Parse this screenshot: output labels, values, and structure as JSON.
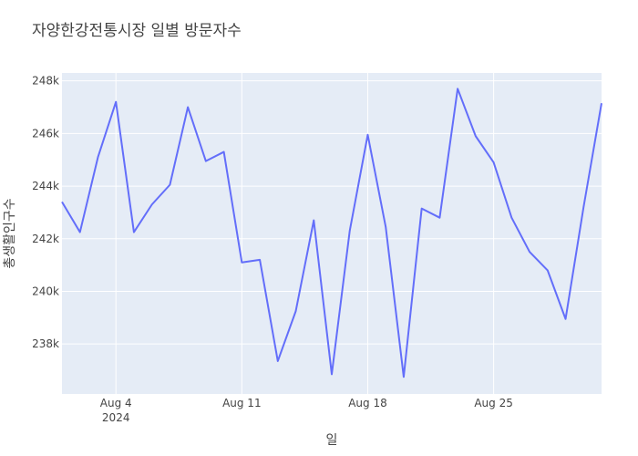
{
  "chart_data": {
    "type": "line",
    "title": "자양한강전통시장 일별 방문자수",
    "xlabel": "일",
    "ylabel": "총생활인구수",
    "x": [
      "2024-08-01",
      "2024-08-02",
      "2024-08-03",
      "2024-08-04",
      "2024-08-05",
      "2024-08-06",
      "2024-08-07",
      "2024-08-08",
      "2024-08-09",
      "2024-08-10",
      "2024-08-11",
      "2024-08-12",
      "2024-08-13",
      "2024-08-14",
      "2024-08-15",
      "2024-08-16",
      "2024-08-17",
      "2024-08-18",
      "2024-08-19",
      "2024-08-20",
      "2024-08-21",
      "2024-08-22",
      "2024-08-23",
      "2024-08-24",
      "2024-08-25",
      "2024-08-26",
      "2024-08-27",
      "2024-08-28",
      "2024-08-29",
      "2024-08-30",
      "2024-08-31"
    ],
    "series": [
      {
        "color": "#636efa",
        "values": [
          243400,
          242250,
          245100,
          247200,
          242250,
          243300,
          244050,
          247000,
          244950,
          245300,
          241100,
          241200,
          237350,
          239250,
          242700,
          236850,
          242300,
          245950,
          242450,
          236750,
          243150,
          242800,
          247700,
          245900,
          244900,
          242800,
          241500,
          240800,
          238950,
          243200,
          247150
        ]
      }
    ],
    "ylim": [
      236100,
      248300
    ],
    "x_ticks": [
      {
        "date": "2024-08-04",
        "label": "Aug 4",
        "sublabel": "2024"
      },
      {
        "date": "2024-08-11",
        "label": "Aug 11",
        "sublabel": ""
      },
      {
        "date": "2024-08-18",
        "label": "Aug 18",
        "sublabel": ""
      },
      {
        "date": "2024-08-25",
        "label": "Aug 25",
        "sublabel": ""
      }
    ],
    "y_ticks": [
      {
        "value": 238000,
        "label": "238k"
      },
      {
        "value": 240000,
        "label": "240k"
      },
      {
        "value": 242000,
        "label": "242k"
      },
      {
        "value": 244000,
        "label": "244k"
      },
      {
        "value": 246000,
        "label": "246k"
      },
      {
        "value": 248000,
        "label": "248k"
      }
    ],
    "grid": true,
    "plot_bg": "#e5ecf6"
  }
}
